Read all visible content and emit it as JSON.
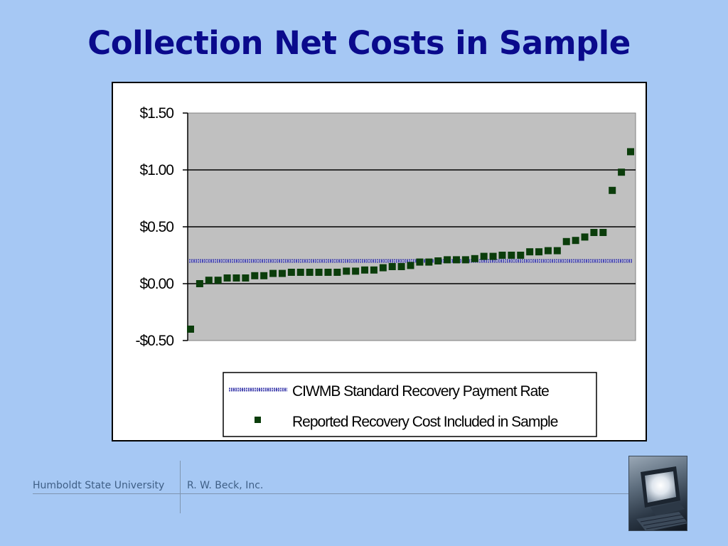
{
  "slide": {
    "title": "Collection Net Costs in Sample"
  },
  "footer": {
    "left": "Humboldt State University",
    "right": "R. W. Beck, Inc."
  },
  "colors": {
    "background": "#a6c8f4",
    "title": "#0a0a8c",
    "plot_area": "#c0c0c0",
    "marker": "#0b3d0b",
    "reference_line": "#4a4ab0"
  },
  "logo": {
    "icon": "computer-monitor-icon"
  },
  "chart_data": {
    "type": "scatter",
    "title": "",
    "xlabel": "",
    "ylabel": "",
    "ylim": [
      -0.5,
      1.5
    ],
    "yticks": [
      1.5,
      1.0,
      0.5,
      0.0,
      -0.5
    ],
    "ytick_labels": [
      "$1.50",
      "$1.00",
      "$0.50",
      "$0.00",
      "-$0.50"
    ],
    "grid": true,
    "legend_position": "bottom",
    "series": [
      {
        "name": "CIWMB Standard Recovery Payment Rate",
        "kind": "line",
        "value": 0.2
      },
      {
        "name": "Reported Recovery Cost Included in Sample",
        "kind": "markers",
        "values": [
          -0.4,
          0.0,
          0.03,
          0.03,
          0.05,
          0.05,
          0.05,
          0.07,
          0.07,
          0.09,
          0.09,
          0.1,
          0.1,
          0.1,
          0.1,
          0.1,
          0.1,
          0.11,
          0.11,
          0.12,
          0.12,
          0.14,
          0.15,
          0.15,
          0.16,
          0.19,
          0.19,
          0.2,
          0.21,
          0.21,
          0.21,
          0.22,
          0.24,
          0.24,
          0.25,
          0.25,
          0.25,
          0.28,
          0.28,
          0.29,
          0.29,
          0.37,
          0.38,
          0.41,
          0.45,
          0.45,
          0.82,
          0.98,
          1.16
        ]
      }
    ]
  }
}
